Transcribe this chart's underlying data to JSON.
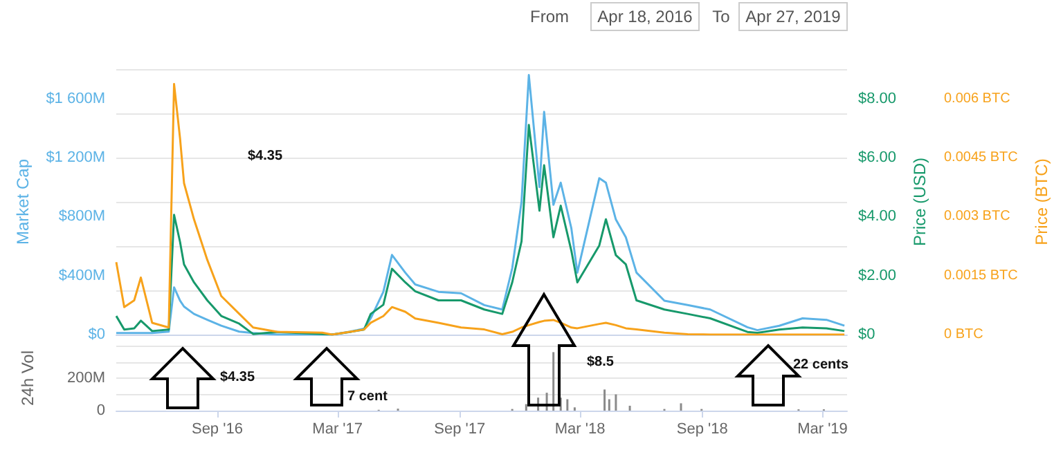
{
  "chart_data": [
    {
      "type": "line",
      "ylabel": "Market Cap",
      "y2label": "Price (USD)",
      "y3label": "Price (BTC)",
      "annotations": [
        "$4.35",
        "From",
        "Apr 18, 2016",
        "To",
        "Apr 27, 2019"
      ],
      "x": [
        "2016-04-02",
        "2016-04-14",
        "2016-04-29",
        "2016-05-09",
        "2016-05-26",
        "2016-06-20",
        "2016-06-28",
        "2016-07-07",
        "2016-07-13",
        "2016-07-28",
        "2016-08-17",
        "2016-09-07",
        "2016-10-04",
        "2016-10-25",
        "2016-11-30",
        "2017-02-06",
        "2017-02-21",
        "2017-03-20",
        "2017-04-10",
        "2017-04-20",
        "2017-05-09",
        "2017-05-22",
        "2017-06-11",
        "2017-06-26",
        "2017-07-31",
        "2017-09-03",
        "2017-10-08",
        "2017-11-04",
        "2017-11-19",
        "2017-12-03",
        "2017-12-14",
        "2017-12-30",
        "2018-01-06",
        "2018-01-20",
        "2018-01-31",
        "2018-02-16",
        "2018-02-25",
        "2018-03-30",
        "2018-04-09",
        "2018-04-24",
        "2018-05-09",
        "2018-05-25",
        "2018-07-06",
        "2018-08-10",
        "2018-09-13",
        "2018-11-08",
        "2018-11-23",
        "2018-12-26",
        "2019-01-30",
        "2019-03-07",
        "2019-04-03"
      ],
      "xlim": [
        "2016-04-02",
        "2019-04-07"
      ],
      "ylim": [
        0,
        1800
      ],
      "yticks": [
        {
          "value": 0,
          "label": "$0"
        },
        {
          "value": 400,
          "label": "$400M"
        },
        {
          "value": 800,
          "label": "$800M"
        },
        {
          "value": 1200,
          "label": "$1 200M"
        },
        {
          "value": 1600,
          "label": "$1 600M"
        }
      ],
      "y2lim": [
        0,
        9
      ],
      "y2ticks": [
        {
          "value": 0,
          "label": "$0"
        },
        {
          "value": 2,
          "label": "$2.00"
        },
        {
          "value": 4,
          "label": "$4.00"
        },
        {
          "value": 6,
          "label": "$6.00"
        },
        {
          "value": 8,
          "label": "$8.00"
        }
      ],
      "y3lim": [
        0,
        0.00675
      ],
      "y3ticks": [
        {
          "value": 0,
          "label": "0 BTC"
        },
        {
          "value": 0.0015,
          "label": "0.0015 BTC"
        },
        {
          "value": 0.003,
          "label": "0.003 BTC"
        },
        {
          "value": 0.0045,
          "label": "0.0045 BTC"
        },
        {
          "value": 0.006,
          "label": "0.006 BTC"
        }
      ],
      "grid": "y",
      "tick_labels": "y",
      "marker": "none",
      "line_style": "solid",
      "series": [
        {
          "color": "#5cb3e6",
          "values": [
            10,
            10,
            10,
            10,
            10,
            20,
            320,
            230,
            190,
            140,
            100,
            60,
            20,
            10,
            0,
            0,
            0,
            20,
            40,
            110,
            290,
            540,
            420,
            340,
            290,
            280,
            200,
            170,
            450,
            900,
            1760,
            1000,
            1510,
            880,
            1030,
            720,
            420,
            1060,
            1030,
            780,
            660,
            420,
            230,
            200,
            170,
            50,
            30,
            60,
            110,
            100,
            60
          ]
        },
        {
          "color": "#17996b",
          "axis": "y2",
          "values": [
            0.63,
            0.17,
            0.21,
            0.47,
            0.12,
            0.17,
            4.06,
            3.14,
            2.38,
            1.77,
            1.16,
            0.63,
            0.37,
            0.02,
            0.09,
            0.02,
            0,
            0.09,
            0.17,
            0.7,
            1.01,
            2.23,
            1.77,
            1.47,
            1.16,
            1.16,
            0.85,
            0.7,
            1.77,
            3.16,
            7.11,
            4.2,
            5.74,
            3.3,
            4.37,
            2.84,
            1.77,
            3.02,
            3.91,
            2.69,
            2.38,
            1.16,
            0.85,
            0.7,
            0.55,
            0.09,
            0.06,
            0.17,
            0.24,
            0.21,
            0.12
          ]
        },
        {
          "color": "#f7a21b",
          "axis": "y3",
          "values": [
            0.00184,
            0.0007,
            0.00087,
            0.00145,
            0.0003,
            0.00018,
            0.00637,
            0.00499,
            0.00385,
            0.00293,
            0.0019,
            0.00098,
            0.00053,
            0.00018,
            7e-05,
            5e-05,
            0,
            7e-05,
            0.00013,
            0.0003,
            0.00047,
            0.0007,
            0.00058,
            0.00041,
            0.0003,
            0.00018,
            0.00013,
            1e-05,
            7e-05,
            0.00018,
            0.00024,
            0.00032,
            0.00035,
            0.00037,
            0.0003,
            0.00018,
            0.00016,
            0.00027,
            0.0003,
            0.00024,
            0.00016,
            0.00013,
            5e-05,
            1e-05,
            0,
            0,
            0,
            0,
            0,
            0,
            0
          ]
        }
      ]
    },
    {
      "type": "bar",
      "ylabel": "24h Vol",
      "color": "#8a8a8a",
      "x": [
        "2017-05-02",
        "2017-05-31",
        "2017-11-19",
        "2017-12-10",
        "2017-12-28",
        "2018-01-10",
        "2018-01-20",
        "2018-01-31",
        "2018-02-10",
        "2018-02-21",
        "2018-04-07",
        "2018-04-14",
        "2018-04-24",
        "2018-05-15",
        "2018-07-06",
        "2018-07-31",
        "2018-08-31",
        "2019-01-24",
        "2019-03-03"
      ],
      "values": [
        5,
        12,
        10,
        40,
        80,
        110,
        360,
        80,
        70,
        20,
        130,
        70,
        100,
        30,
        10,
        45,
        10,
        8,
        8
      ],
      "xlim": [
        "2016-04-02",
        "2019-04-07"
      ],
      "xticks": [
        {
          "value": "2016-09-01",
          "label": "Sep '16"
        },
        {
          "value": "2017-03-01",
          "label": "Mar '17"
        },
        {
          "value": "2017-09-01",
          "label": "Sep '17"
        },
        {
          "value": "2018-03-01",
          "label": "Mar '18"
        },
        {
          "value": "2018-09-01",
          "label": "Sep '18"
        },
        {
          "value": "2019-03-01",
          "label": "Mar '19"
        }
      ],
      "ylim": [
        0,
        400
      ],
      "yticks": [
        0,
        {
          "value": 200,
          "label": "200M"
        }
      ],
      "grid": "y",
      "annotations": [
        "$4.35",
        "7 cent",
        "$8.5",
        "22 cents"
      ]
    }
  ]
}
